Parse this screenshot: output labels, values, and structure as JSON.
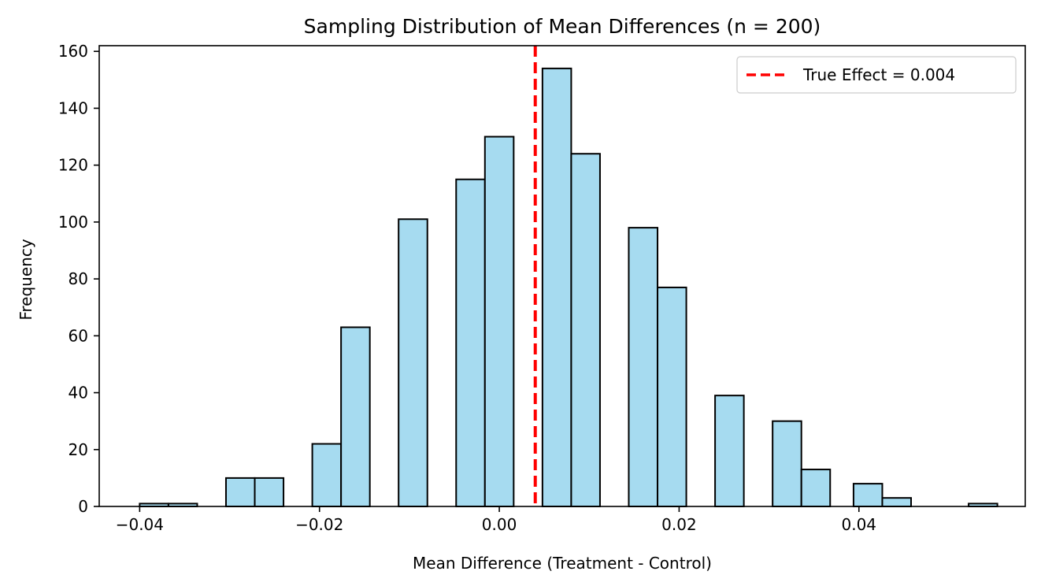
{
  "chart_data": {
    "type": "bar",
    "title": "Sampling Distribution of Mean Differences (n = 200)",
    "xlabel": "Mean Difference (Treatment - Control)",
    "ylabel": "Frequency",
    "xlim": [
      -0.0445,
      0.0585
    ],
    "ylim": [
      0,
      162
    ],
    "xticks": [
      -0.04,
      -0.02,
      0.0,
      0.02,
      0.04
    ],
    "xtick_labels": [
      "−0.04",
      "−0.02",
      "0.00",
      "0.02",
      "0.04"
    ],
    "yticks": [
      0,
      20,
      40,
      60,
      80,
      100,
      120,
      140,
      160
    ],
    "ytick_labels": [
      "0",
      "20",
      "40",
      "60",
      "80",
      "100",
      "120",
      "140",
      "160"
    ],
    "bins": [
      {
        "x0": -0.04,
        "x1": -0.0368,
        "count": 1
      },
      {
        "x0": -0.0368,
        "x1": -0.0336,
        "count": 1
      },
      {
        "x0": -0.0304,
        "x1": -0.0272,
        "count": 10
      },
      {
        "x0": -0.0272,
        "x1": -0.024,
        "count": 10
      },
      {
        "x0": -0.0208,
        "x1": -0.0176,
        "count": 22
      },
      {
        "x0": -0.0176,
        "x1": -0.0144,
        "count": 63
      },
      {
        "x0": -0.0112,
        "x1": -0.008,
        "count": 101
      },
      {
        "x0": -0.0048,
        "x1": -0.0016,
        "count": 115
      },
      {
        "x0": -0.0016,
        "x1": 0.0016,
        "count": 130
      },
      {
        "x0": 0.0048,
        "x1": 0.008,
        "count": 154
      },
      {
        "x0": 0.008,
        "x1": 0.0112,
        "count": 124
      },
      {
        "x0": 0.0144,
        "x1": 0.0176,
        "count": 98
      },
      {
        "x0": 0.0176,
        "x1": 0.0208,
        "count": 77
      },
      {
        "x0": 0.024,
        "x1": 0.0272,
        "count": 39
      },
      {
        "x0": 0.0304,
        "x1": 0.0336,
        "count": 30
      },
      {
        "x0": 0.0336,
        "x1": 0.0368,
        "count": 13
      },
      {
        "x0": 0.0394,
        "x1": 0.0426,
        "count": 8
      },
      {
        "x0": 0.0426,
        "x1": 0.0458,
        "count": 3
      },
      {
        "x0": 0.0522,
        "x1": 0.0554,
        "count": 1
      }
    ],
    "bar_color": "#a6dbf0",
    "bar_edge_color": "#000000",
    "reference_line": {
      "x": 0.004,
      "color": "#ff0000",
      "style": "dashed"
    },
    "legend": {
      "placement": "top-right",
      "entries": [
        "True Effect = 0.004"
      ]
    },
    "grid": false
  }
}
